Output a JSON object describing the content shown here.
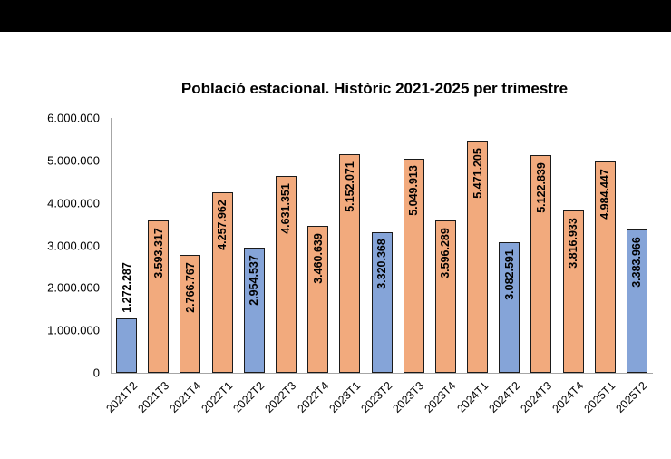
{
  "chart_data": {
    "type": "bar",
    "title": "Població estacional. Històric 2021-2025 per trimestre",
    "xlabel": "",
    "ylabel": "",
    "ylim": [
      0,
      6000000
    ],
    "y_ticks": [
      "0",
      "1.000.000",
      "2.000.000",
      "3.000.000",
      "4.000.000",
      "5.000.000",
      "6.000.000"
    ],
    "grid": false,
    "legend": null,
    "colors": {
      "T2": "#85a4d8",
      "other": "#f2aa7d",
      "border": "#1a1a1a",
      "axis": "#a6a6a6"
    },
    "categories": [
      "2021T2",
      "2021T3",
      "2021T4",
      "2022T1",
      "2022T2",
      "2022T3",
      "2022T4",
      "2023T1",
      "2023T2",
      "2023T3",
      "2023T4",
      "2024T1",
      "2024T2",
      "2024T3",
      "2024T4",
      "2025T1",
      "2025T2"
    ],
    "values": [
      1272287,
      3593317,
      2766767,
      4257962,
      2954537,
      4631351,
      3460639,
      5152071,
      3320368,
      5049913,
      3596289,
      5471205,
      3082591,
      5122839,
      3816933,
      4984447,
      3383966
    ],
    "value_labels": [
      "1.272.287",
      "3.593.317",
      "2.766.767",
      "4.257.962",
      "2.954.537",
      "4.631.351",
      "3.460.639",
      "5.152.071",
      "3.320.368",
      "5.049.913",
      "3.596.289",
      "5.471.205",
      "3.082.591",
      "5.122.839",
      "3.816.933",
      "4.984.447",
      "3.383.966"
    ],
    "highlight": [
      true,
      false,
      false,
      false,
      true,
      false,
      false,
      false,
      true,
      false,
      false,
      false,
      true,
      false,
      false,
      false,
      true
    ]
  }
}
